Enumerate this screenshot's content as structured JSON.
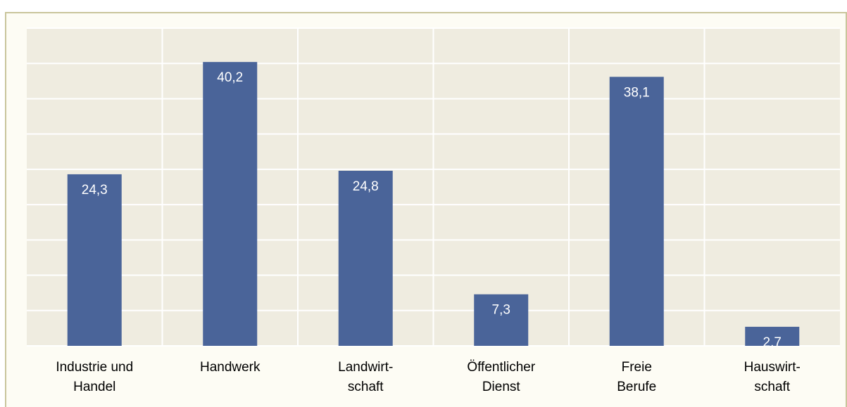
{
  "chart_data": {
    "type": "bar",
    "categories": [
      "Industrie und\nHandel",
      "Handwerk",
      "Landwirt-\nschaft",
      "Öffentlicher\nDienst",
      "Freie\nBerufe",
      "Hauswirt-\nschaft"
    ],
    "values": [
      24.3,
      40.2,
      24.8,
      7.3,
      38.1,
      2.7
    ],
    "value_labels": [
      "24,3",
      "40,2",
      "24,8",
      "7,3",
      "38,1",
      "2,7"
    ],
    "color": "#4a6499",
    "ylim": [
      0,
      45
    ],
    "yticks": [
      0,
      5,
      10,
      15,
      20,
      25,
      30,
      35,
      40,
      45
    ],
    "grid": true
  }
}
